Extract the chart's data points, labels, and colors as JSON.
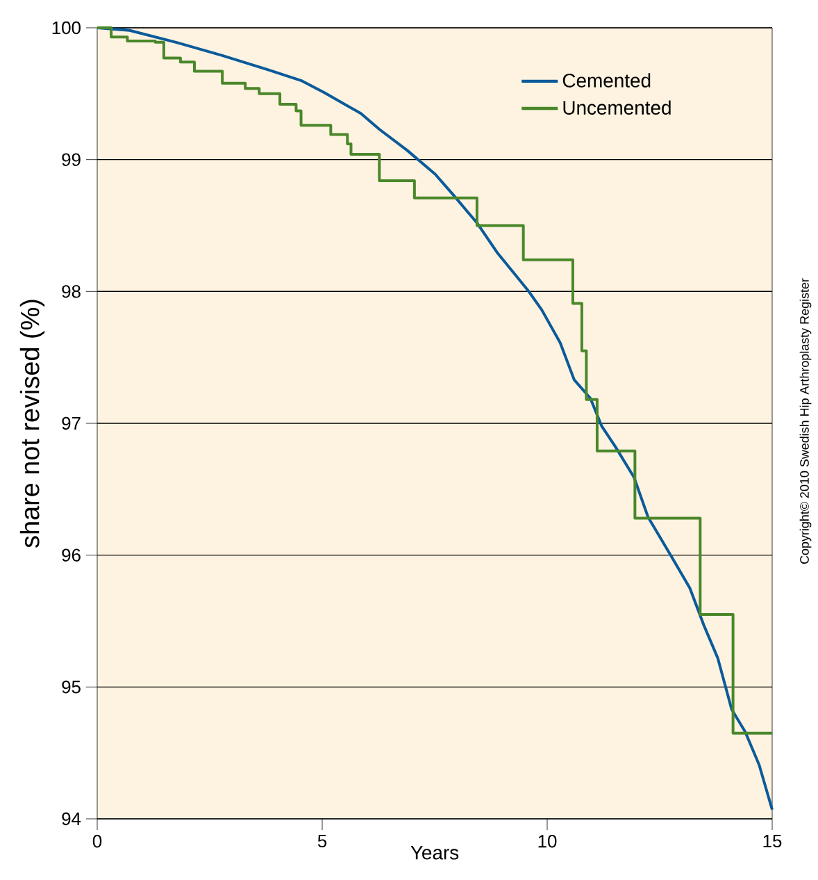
{
  "chart_data": {
    "type": "line",
    "xlabel": "Years",
    "ylabel": "share not revised (%)",
    "xlim": [
      0,
      15
    ],
    "xticks": [
      0,
      5,
      10,
      15
    ],
    "ylim": [
      94,
      100
    ],
    "yticks": [
      94,
      95,
      96,
      97,
      98,
      99,
      100
    ],
    "grid": "y",
    "legend": "top right",
    "annotations": [
      "Copyright© 2010 Swedish Hip Arthroplasty Register"
    ],
    "series": [
      {
        "name": "Cemented",
        "color": "#0b5a9a",
        "x": [
          0,
          0.72,
          1.75,
          2.78,
          3.81,
          4.53,
          5.04,
          5.86,
          6.27,
          6.89,
          7.51,
          7.92,
          8.44,
          8.9,
          9.57,
          9.88,
          10.29,
          10.6,
          10.96,
          11.21,
          11.52,
          11.93,
          12.24,
          12.76,
          13.17,
          13.48,
          13.79,
          14.1,
          14.4,
          14.71,
          15
        ],
        "values": [
          100,
          99.98,
          99.89,
          99.79,
          99.68,
          99.6,
          99.51,
          99.35,
          99.23,
          99.07,
          98.89,
          98.73,
          98.52,
          98.29,
          98.01,
          97.86,
          97.61,
          97.33,
          97.19,
          96.98,
          96.82,
          96.59,
          96.29,
          95.99,
          95.75,
          95.47,
          95.22,
          94.83,
          94.66,
          94.41,
          94.07
        ]
      },
      {
        "name": "Uncemented",
        "type": "step",
        "color": "#4a872a",
        "x": [
          0,
          0.31,
          0.67,
          1.29,
          1.48,
          1.85,
          2.16,
          2.78,
          3.29,
          3.6,
          4.06,
          4.42,
          4.53,
          5.19,
          5.56,
          5.64,
          6.27,
          7.05,
          8.44,
          9.47,
          10.57,
          10.77,
          10.87,
          11.11,
          11.95,
          13.4,
          14.13,
          15
        ],
        "values": [
          100,
          99.93,
          99.9,
          99.89,
          99.77,
          99.74,
          99.67,
          99.58,
          99.54,
          99.5,
          99.42,
          99.37,
          99.26,
          99.19,
          99.12,
          99.04,
          98.84,
          98.71,
          98.5,
          98.24,
          97.91,
          97.55,
          97.18,
          96.79,
          96.28,
          95.55,
          94.65,
          94.65
        ]
      }
    ]
  }
}
